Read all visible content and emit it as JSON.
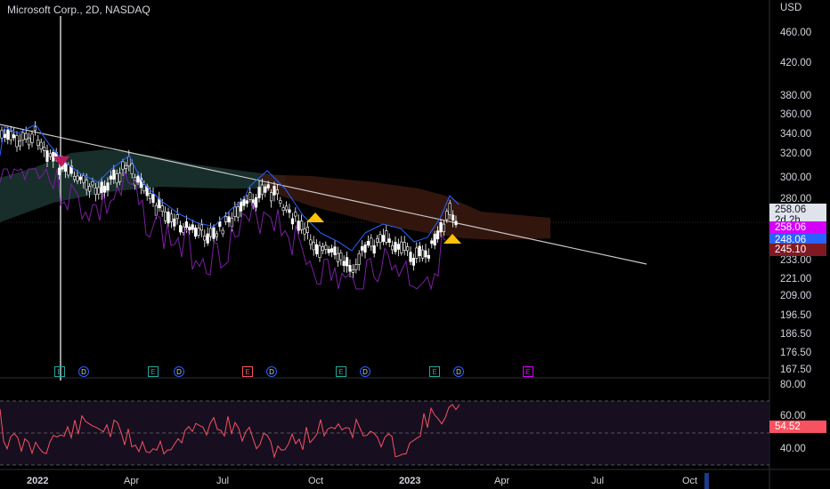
{
  "header": {
    "symbol_title": "Microsoft Corp., 2D, NASDAQ",
    "currency": "USD"
  },
  "price_axis": {
    "labels": [
      "460.00",
      "420.00",
      "380.00",
      "360.00",
      "340.00",
      "320.00",
      "300.00",
      "280.00",
      "233.00",
      "221.00",
      "209.00",
      "196.50",
      "186.50",
      "176.50",
      "167.50"
    ]
  },
  "price_tags": [
    {
      "id": "last",
      "line1": "258.06",
      "line2": "2d 2h",
      "bg": "#e0e3eb",
      "fg": "#131722"
    },
    {
      "id": "purple",
      "text": "258.06",
      "bg": "#d500f9",
      "fg": "#ffffff"
    },
    {
      "id": "blue",
      "text": "248.06",
      "bg": "#2962ff",
      "fg": "#ffffff"
    },
    {
      "id": "red",
      "text": "245.10",
      "bg": "#801922",
      "fg": "#ffffff"
    }
  ],
  "rsi_axis": {
    "labels": [
      "80.00",
      "60.00",
      "40.00"
    ],
    "value": "54.52",
    "value_bg": "#f7525f"
  },
  "time_axis": {
    "labels": [
      "2022",
      "Apr",
      "Jul",
      "Oct",
      "2023",
      "Apr",
      "Jul",
      "Oct"
    ]
  },
  "events": [
    {
      "type": "E",
      "color": "#26a69a"
    },
    {
      "type": "D"
    },
    {
      "type": "E",
      "color": "#26a69a"
    },
    {
      "type": "D"
    },
    {
      "type": "E",
      "color": "#f7525f"
    },
    {
      "type": "D"
    },
    {
      "type": "E",
      "color": "#26a69a"
    },
    {
      "type": "D"
    },
    {
      "type": "E",
      "color": "#26a69a"
    },
    {
      "type": "D"
    },
    {
      "type": "E",
      "color": "#d500f9"
    }
  ],
  "colors": {
    "up": "#ffffff",
    "trend": "#c8c8c8",
    "ma": "#2962ff",
    "osc": "#7b1fa2",
    "rsi": "#f7525f",
    "grid": "#2a2e39"
  },
  "chart_data": {
    "type": "candlestick",
    "series": [
      {
        "name": "price",
        "x": [
          "2022-01",
          "2022-02",
          "2022-03",
          "2022-04",
          "2022-05",
          "2022-06",
          "2022-07",
          "2022-08",
          "2022-09",
          "2022-10",
          "2022-11",
          "2022-12",
          "2023-01",
          "2023-02"
        ],
        "values": [
          335,
          300,
          310,
          285,
          265,
          255,
          270,
          290,
          245,
          230,
          245,
          240,
          240,
          258
        ]
      }
    ],
    "rsi": {
      "upper": 70,
      "lower": 30,
      "last": 54.52
    },
    "ylim": [
      160,
      480
    ]
  }
}
